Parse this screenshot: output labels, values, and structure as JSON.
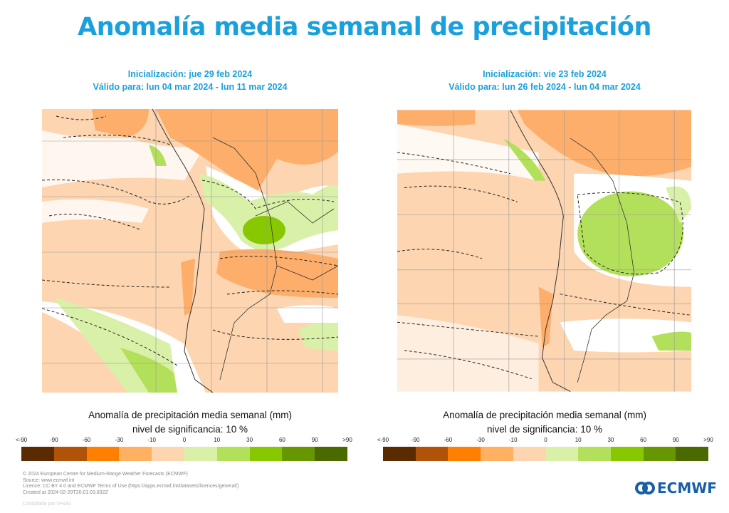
{
  "title": "Anomalía media semanal de precipitación",
  "panels": [
    {
      "init": "Inicialización: jue 29 feb 2024",
      "valid": "Válido para: lun 04 mar 2024 - lun 11 mar 2024"
    },
    {
      "init": "Inicialización: vie 23 feb 2024",
      "valid": "Válido para: lun 26 feb 2024 - lun 04 mar 2024"
    }
  ],
  "caption": {
    "line1": "Anomalía de precipitación media semanal (mm)",
    "line2": "nivel de significancia: 10 %"
  },
  "chart_data": {
    "type": "heatmap",
    "title": "Anomalía media semanal de precipitación",
    "colorbar": {
      "label": "Anomalía de precipitación media semanal (mm)",
      "ticks": [
        "<-90",
        "-90",
        "-60",
        "-30",
        "-10",
        "0",
        "10",
        "30",
        "60",
        "90",
        ">90"
      ],
      "colors": [
        "#5a2a00",
        "#b05208",
        "#ff8000",
        "#ffb060",
        "#fdd5b0",
        "#d9f0a8",
        "#b3e05a",
        "#88c800",
        "#669600",
        "#4a6a00"
      ]
    },
    "maps": [
      {
        "region": "South America (southern cone)",
        "init": "jue 29 feb 2024",
        "valid": "lun 04 mar 2024 - lun 11 mar 2024"
      },
      {
        "region": "South America (southern cone)",
        "init": "vie 23 feb 2024",
        "valid": "lun 26 feb 2024 - lun 04 mar 2024"
      }
    ]
  },
  "footer": {
    "lines": [
      "© 2024 European Centre for Medium-Range Weather Forecasts (ECMWF)",
      "Source: www.ecmwf.int",
      "Licence: CC BY 4.0 and ECMWF Terms of Use (https://apps.ecmwf.int/datasets/licences/general/)",
      "Created at 2024-02-29T20:01:03.832Z"
    ],
    "compiled": "Compilado por VHUG"
  },
  "logo": "ECMWF"
}
